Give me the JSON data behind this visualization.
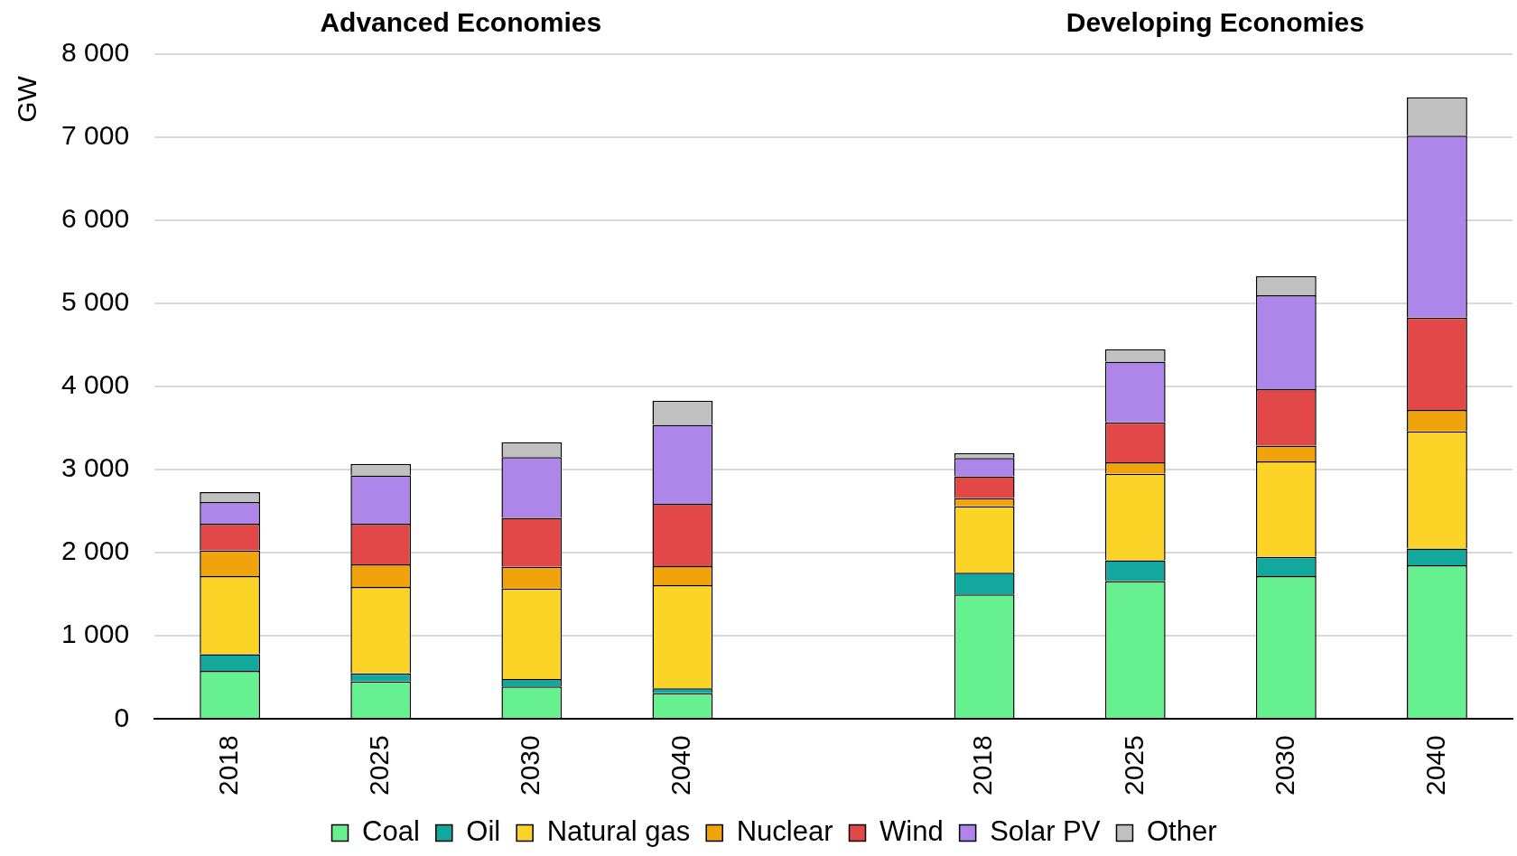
{
  "chart_data": {
    "type": "bar",
    "stacked": true,
    "ylabel": "GW",
    "annotations": [
      "Advanced Economies",
      "Developing Economies"
    ],
    "categories": [
      "2018",
      "2025",
      "2030",
      "2040",
      null,
      "2018",
      "2025",
      "2030",
      "2040"
    ],
    "series": [
      {
        "name": "Coal",
        "color": "#66f08f",
        "values": [
          580,
          450,
          390,
          310,
          null,
          1500,
          1660,
          1720,
          1850
        ]
      },
      {
        "name": "Oil",
        "color": "#13a89e",
        "values": [
          200,
          100,
          90,
          60,
          null,
          260,
          250,
          230,
          200
        ]
      },
      {
        "name": "Natural gas",
        "color": "#fcd327",
        "values": [
          940,
          1040,
          1090,
          1240,
          null,
          800,
          1040,
          1150,
          1410
        ]
      },
      {
        "name": "Nuclear",
        "color": "#f0a30a",
        "values": [
          310,
          270,
          260,
          230,
          null,
          100,
          140,
          190,
          260
        ]
      },
      {
        "name": "Wind",
        "color": "#e24848",
        "values": [
          320,
          490,
          590,
          750,
          null,
          260,
          480,
          680,
          1110
        ]
      },
      {
        "name": "Solar PV",
        "color": "#ae86ea",
        "values": [
          260,
          580,
          730,
          950,
          null,
          220,
          730,
          1130,
          2190
        ]
      },
      {
        "name": "Other",
        "color": "#c0c0c0",
        "values": [
          120,
          140,
          180,
          290,
          null,
          60,
          150,
          230,
          460
        ]
      }
    ],
    "ylim": [
      0,
      8000
    ],
    "yticks": [
      0,
      {
        "value": 1000,
        "label": "1 000"
      },
      {
        "value": 2000,
        "label": "2 000"
      },
      {
        "value": 3000,
        "label": "3 000"
      },
      {
        "value": 4000,
        "label": "4 000"
      },
      {
        "value": 5000,
        "label": "5 000"
      },
      {
        "value": 6000,
        "label": "6 000"
      },
      {
        "value": 7000,
        "label": "7 000"
      },
      {
        "value": 8000,
        "label": "8 000"
      }
    ],
    "grid": "y",
    "legend": "bottom"
  }
}
